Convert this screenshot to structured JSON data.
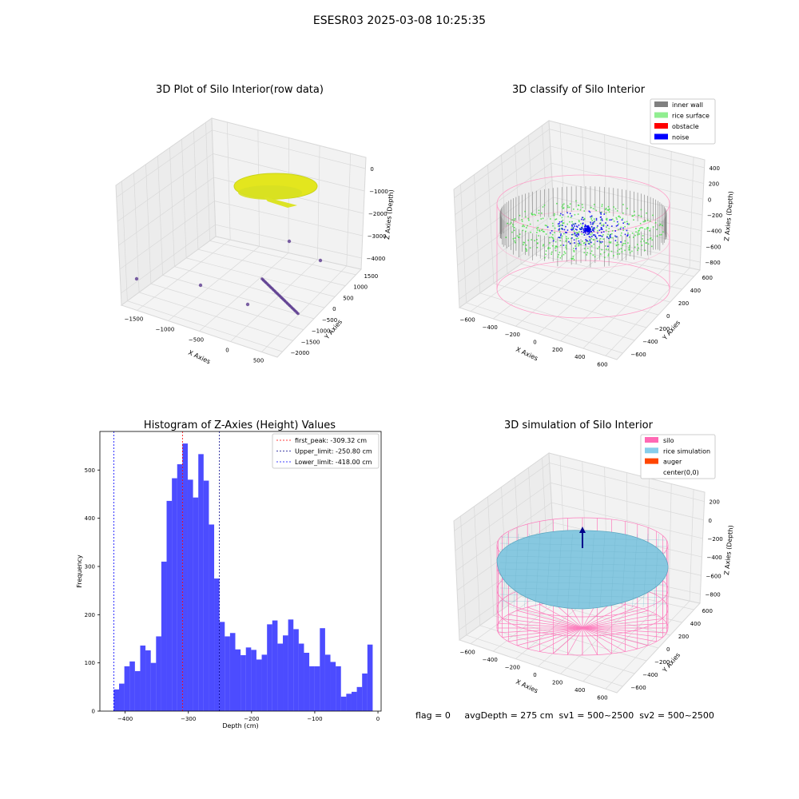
{
  "figure": {
    "suptitle": "ESESR03 2025-03-08 10:25:35",
    "footer": "flag = 0     avgDepth = 275 cm  sv1 = 500~2500  sv2 = 500~2500"
  },
  "panels": {
    "raw": {
      "title": "3D Plot of Silo Interior(row data)",
      "xlabel": "X Axies",
      "ylabel": "Y Axies",
      "zlabel": "Z Axies (Depth)",
      "xticks": [
        "−1500",
        "−1000",
        "−500",
        "0",
        "500"
      ],
      "yticks": [
        "1500",
        "1000",
        "500",
        "0",
        "−500",
        "−1000",
        "−1500",
        "−2000"
      ],
      "zticks": [
        "0",
        "−1000",
        "−2000",
        "−3000",
        "−4000"
      ],
      "colors": {
        "surface": "#e4e41a",
        "points": "#5b3a8e"
      }
    },
    "classify": {
      "title": "3D classify of Silo Interior",
      "xlabel": "X Axies",
      "ylabel": "Y Axies",
      "zlabel": "Z Axies (Depth)",
      "xticks": [
        "−600",
        "−400",
        "−200",
        "0",
        "200",
        "400",
        "600"
      ],
      "yticks": [
        "600",
        "400",
        "200",
        "0",
        "−200",
        "−400",
        "−600"
      ],
      "zticks": [
        "400",
        "200",
        "0",
        "−200",
        "−400",
        "−600",
        "−800"
      ],
      "legend": [
        {
          "label": "inner wall",
          "color": "#808080"
        },
        {
          "label": "rice surface",
          "color": "#90ee90"
        },
        {
          "label": "obstacle",
          "color": "#ff0000"
        },
        {
          "label": "noise",
          "color": "#0000ff"
        }
      ]
    },
    "simulation": {
      "title": "3D simulation of Silo Interior",
      "xlabel": "X Axies",
      "ylabel": "Y Axies",
      "zlabel": "Z Axies (Depth)",
      "xticks": [
        "−600",
        "−400",
        "−200",
        "0",
        "200",
        "400",
        "600"
      ],
      "yticks": [
        "600",
        "400",
        "200",
        "0",
        "−200",
        "−400",
        "−600"
      ],
      "zticks": [
        "200",
        "0",
        "−200",
        "−400",
        "−600",
        "−800"
      ],
      "legend": [
        {
          "label": "silo",
          "color": "#ff69b4"
        },
        {
          "label": "rice simulation",
          "color": "#87ceeb"
        },
        {
          "label": "auger",
          "color": "#ff4500"
        },
        {
          "label": "center(0,0)",
          "color": ""
        }
      ]
    }
  },
  "chart_data": {
    "type": "bar",
    "title": "Histogram of Z-Axies (Height) Values",
    "xlabel": "Depth (cm)",
    "ylabel": "Frequency",
    "xlim": [
      -440,
      5
    ],
    "ylim": [
      0,
      580
    ],
    "xticks": [
      -400,
      -300,
      -200,
      -100,
      0
    ],
    "yticks": [
      0,
      100,
      200,
      300,
      400,
      500
    ],
    "bin_start": -418.0,
    "bin_width": 8.36,
    "values": [
      45,
      57,
      93,
      103,
      83,
      136,
      126,
      100,
      155,
      310,
      436,
      483,
      512,
      555,
      480,
      443,
      533,
      478,
      387,
      275,
      185,
      155,
      162,
      128,
      116,
      132,
      127,
      107,
      117,
      180,
      188,
      140,
      157,
      190,
      170,
      140,
      121,
      93,
      93,
      172,
      117,
      102,
      93,
      30,
      36,
      40,
      50,
      78,
      138
    ],
    "bar_color": "#0000ff",
    "vlines": [
      {
        "label": "first_peak: -309.32 cm",
        "x": -309.32,
        "color": "#ff0000"
      },
      {
        "label": "Upper_limit: -250.80 cm",
        "x": -250.8,
        "color": "#00008b"
      },
      {
        "label": "Lower_limit: -418.00 cm",
        "x": -418.0,
        "color": "#0000ff"
      }
    ],
    "legend_position": "top-right"
  }
}
